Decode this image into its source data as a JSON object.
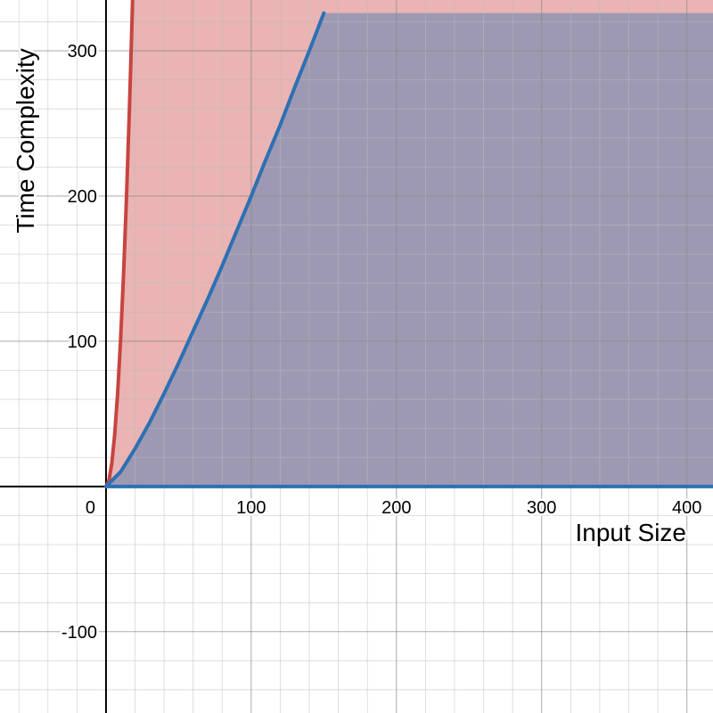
{
  "chart_data": {
    "type": "area",
    "xlabel": "Input Size",
    "ylabel": "Time Complexity",
    "xlim": [
      -73,
      418
    ],
    "ylim": [
      -156,
      335
    ],
    "x_ticks": [
      0,
      100,
      200,
      300,
      400
    ],
    "x_tick_labels": [
      "0",
      "100",
      "200",
      "300",
      "400"
    ],
    "y_ticks": [
      -100,
      100,
      200,
      300
    ],
    "y_tick_labels": [
      "-100",
      "100",
      "200",
      "300"
    ],
    "minor_grid_step": 20,
    "major_grid_step": 100,
    "grid": true,
    "series": [
      {
        "color": "#c74440",
        "fill": "#c74440",
        "fill_opacity": 0.4,
        "x": [
          0,
          2,
          4,
          6,
          8,
          10,
          12,
          14,
          16,
          17,
          18,
          19
        ],
        "y": [
          0,
          4,
          16,
          36,
          64,
          100,
          144,
          196,
          256,
          289,
          324,
          361
        ]
      },
      {
        "color": "#2d70b3",
        "fill": "#2d70b3",
        "fill_opacity": 0.4,
        "x": [
          0,
          10,
          20,
          30,
          40,
          50,
          60,
          70,
          80,
          90,
          100,
          110,
          120,
          130,
          140,
          150
        ],
        "y": [
          0,
          10,
          26,
          44,
          64,
          85,
          107,
          129,
          152,
          176,
          200,
          225,
          249,
          275,
          300,
          326
        ]
      },
      {
        "color": "#2d70b3",
        "x": [
          0,
          418
        ],
        "y": [
          0,
          0
        ]
      }
    ]
  }
}
